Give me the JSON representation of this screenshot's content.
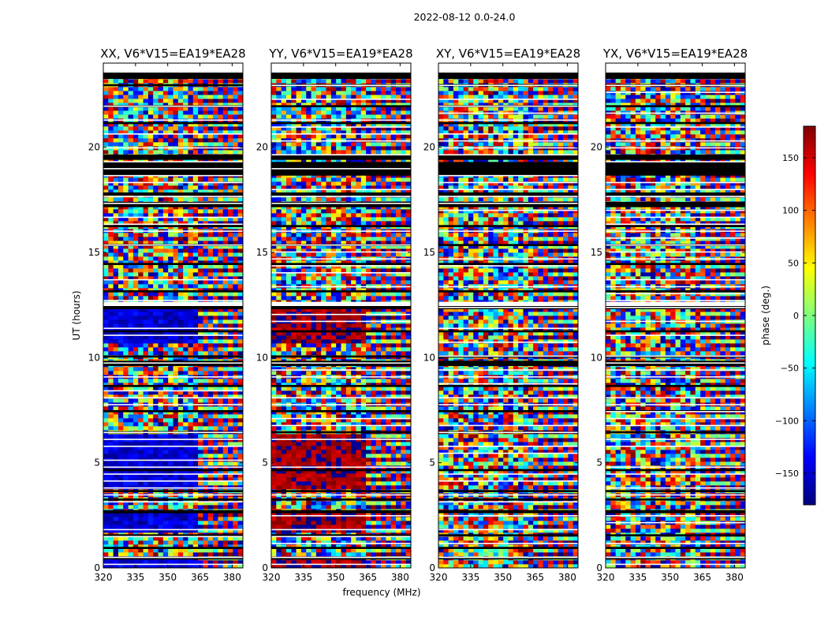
{
  "chart_data": {
    "type": "heatmap",
    "suptitle": "2022-08-12 0.0-24.0",
    "xlabel": "frequency (MHz)",
    "ylabel": "UT (hours)",
    "xlim": [
      320,
      385
    ],
    "ylim": [
      0,
      24
    ],
    "xticks": [
      320,
      335,
      350,
      365,
      380
    ],
    "yticks": [
      0,
      5,
      10,
      15,
      20
    ],
    "colorbar": {
      "label": "phase (deg.)",
      "range": [
        -180,
        180
      ],
      "ticks": [
        150,
        100,
        50,
        0,
        -50,
        -100,
        -150
      ],
      "colormap": "jet",
      "colors": [
        "#00007f",
        "#0000ff",
        "#007fff",
        "#00ffff",
        "#7fff7f",
        "#ffff00",
        "#ff7f00",
        "#ff0000",
        "#7f0000"
      ]
    },
    "panels": [
      {
        "title": "XX, V6*V15=EA19*EA28",
        "polarization": "XX",
        "bias_phase_deg": -150
      },
      {
        "title": "YY, V6*V15=EA19*EA28",
        "polarization": "YY",
        "bias_phase_deg": 170
      },
      {
        "title": "XY, V6*V15=EA19*EA28",
        "polarization": "XY",
        "bias_phase_deg": null
      },
      {
        "title": "YX, V6*V15=EA19*EA28",
        "polarization": "YX",
        "bias_phase_deg": null
      }
    ],
    "flagged_ut_bands_hours": [
      [
        23.25,
        23.55
      ],
      [
        22.9,
        23.0
      ],
      [
        21.9,
        22.0
      ],
      [
        21.1,
        21.2
      ],
      [
        19.4,
        19.65
      ],
      [
        18.65,
        19.3
      ],
      [
        17.7,
        17.85
      ],
      [
        17.15,
        17.4
      ],
      [
        16.2,
        16.3
      ],
      [
        15.3,
        15.4
      ],
      [
        14.4,
        14.5
      ],
      [
        13.1,
        13.2
      ],
      [
        12.3,
        12.45
      ],
      [
        11.2,
        11.3
      ],
      [
        10.0,
        10.1
      ],
      [
        9.6,
        9.85
      ],
      [
        8.6,
        8.7
      ],
      [
        7.4,
        7.5
      ],
      [
        6.4,
        6.5
      ],
      [
        4.6,
        4.7
      ],
      [
        3.6,
        3.7
      ],
      [
        3.2,
        3.3
      ],
      [
        2.6,
        2.75
      ],
      [
        1.5,
        1.6
      ],
      [
        0.9,
        1.0
      ],
      [
        0.4,
        0.5
      ]
    ],
    "blank_ut_bands_hours": [
      [
        24.0,
        23.6
      ],
      [
        23.6,
        23.55
      ],
      [
        12.65,
        12.45
      ]
    ],
    "strong_phase_region_mhz": [
      320,
      363
    ]
  }
}
